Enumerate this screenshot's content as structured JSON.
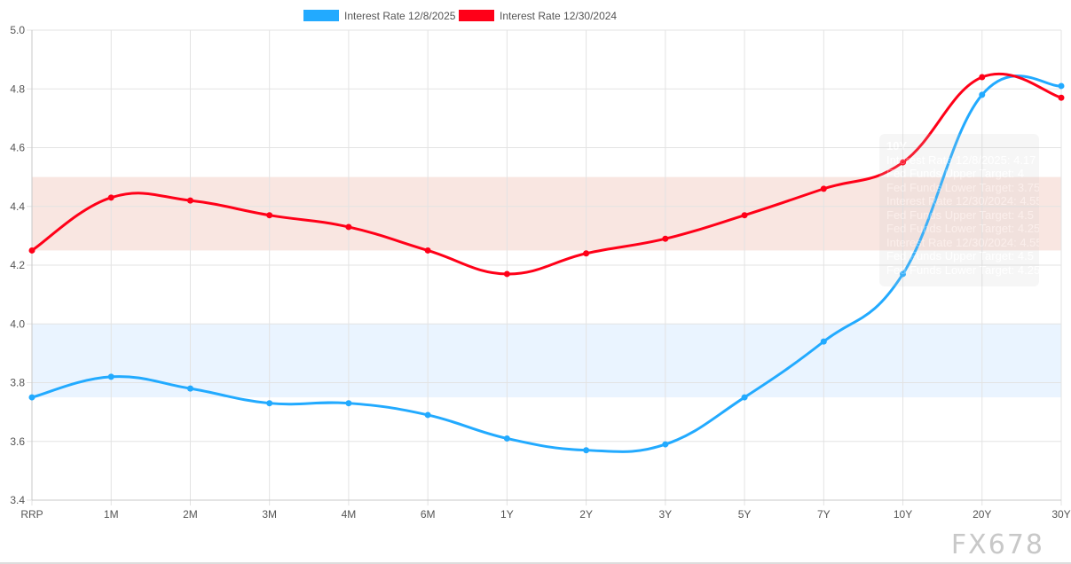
{
  "chart_data": {
    "type": "line",
    "categories": [
      "RRP",
      "1M",
      "2M",
      "3M",
      "4M",
      "6M",
      "1Y",
      "2Y",
      "3Y",
      "5Y",
      "7Y",
      "10Y",
      "20Y",
      "30Y"
    ],
    "series": [
      {
        "name": "Interest Rate 12/8/2025",
        "color": "#22aaff",
        "values": [
          3.75,
          3.82,
          3.78,
          3.73,
          3.73,
          3.69,
          3.61,
          3.57,
          3.59,
          3.75,
          3.94,
          4.17,
          4.78,
          4.81
        ]
      },
      {
        "name": "Interest Rate 12/30/2024",
        "color": "#ff0018",
        "values": [
          4.25,
          4.43,
          4.42,
          4.37,
          4.33,
          4.25,
          4.17,
          4.24,
          4.29,
          4.37,
          4.46,
          4.55,
          4.84,
          4.77
        ]
      }
    ],
    "bands": [
      {
        "lower": 3.75,
        "upper": 4.0,
        "color": "#eaf4ff"
      },
      {
        "lower": 4.25,
        "upper": 4.5,
        "color": "#f9e6e1"
      }
    ],
    "ylim": [
      3.4,
      5.0
    ],
    "yticks": [
      "3.4",
      "3.6",
      "3.8",
      "4.0",
      "4.2",
      "4.4",
      "4.6",
      "4.8",
      "5.0"
    ],
    "grid": true,
    "legend_position": "top",
    "tooltip": {
      "title": "10Y",
      "lines": [
        "Interest Rate 12/8/2025: 4.17",
        "Fed Funds Upper Target: 4",
        "Fed Funds Lower Target: 3.75",
        "Interest Rate 12/30/2024: 4.55",
        "Fed Funds Upper Target: 4.5",
        "Fed Funds Lower Target: 4.25",
        "Interest Rate 12/30/2024: 4.55",
        "Fed Funds Upper Target: 4.5",
        "Fed Funds Lower Target: 4.25"
      ]
    }
  },
  "watermark": "FX678"
}
